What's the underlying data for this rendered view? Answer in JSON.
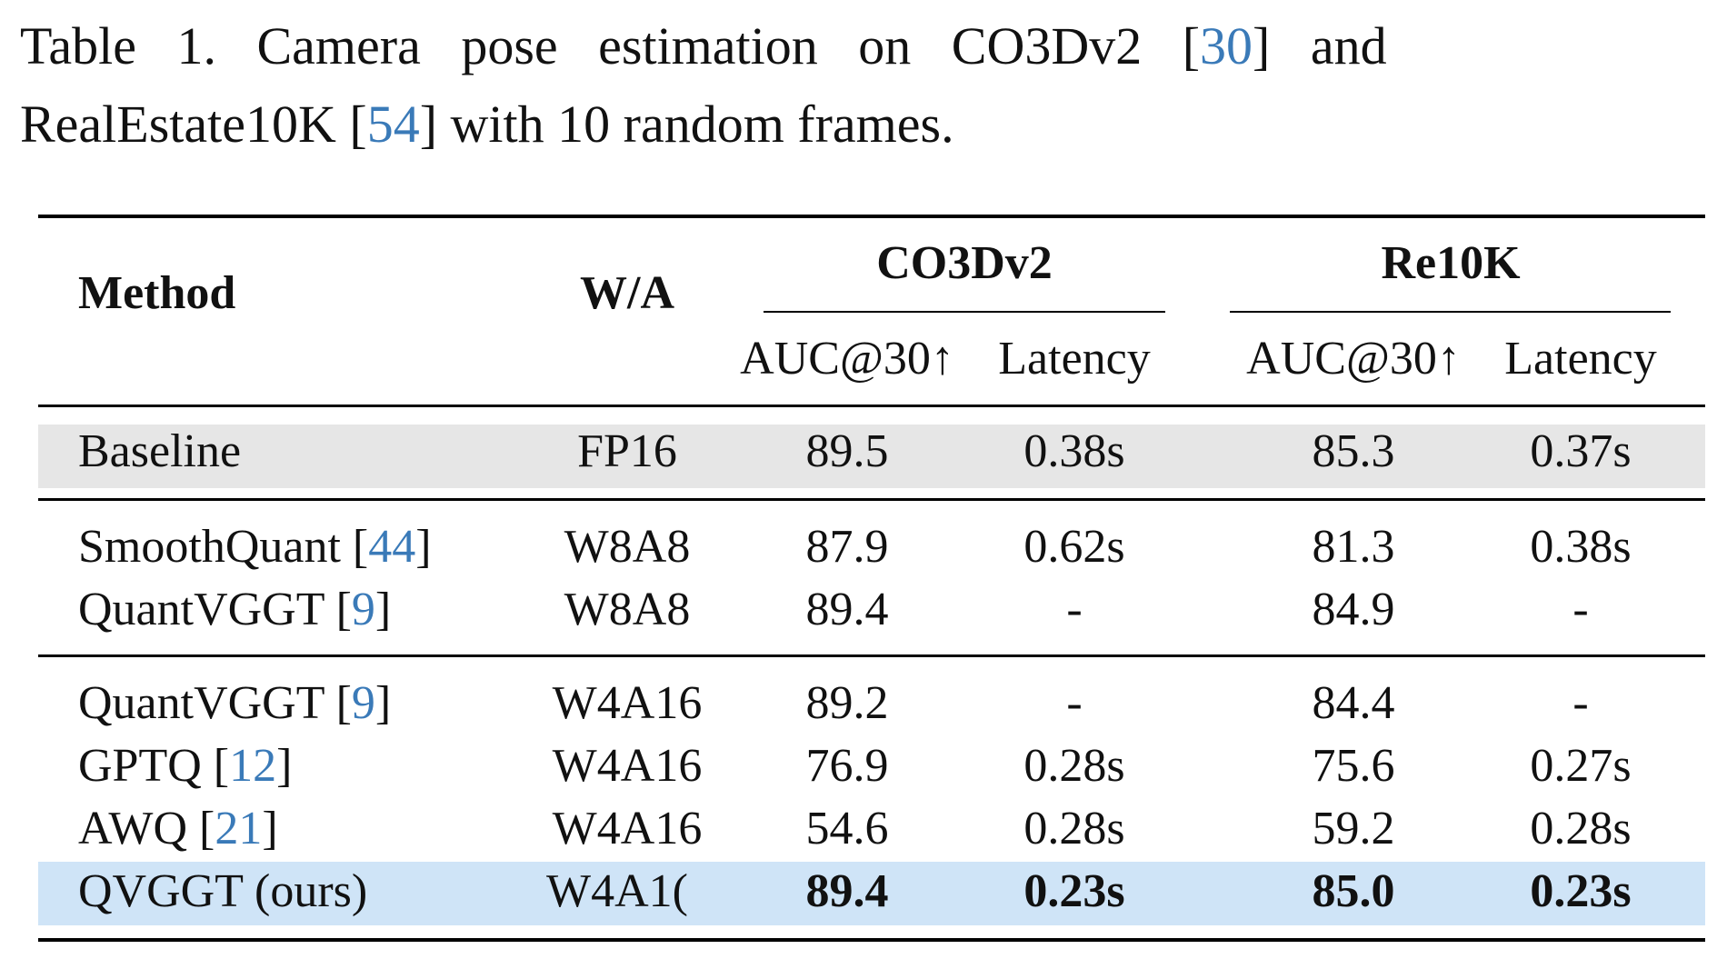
{
  "caption": {
    "label": "Table 1.",
    "line1_text": "Camera pose estimation on CO3Dv2 [",
    "ref_co3d": "30",
    "line1_tail": "] and",
    "line2_text": "RealEstate10K [",
    "ref_re10k": "54",
    "line2_tail": "] with 10 random frames."
  },
  "table": {
    "headers": {
      "method": "Method",
      "wa": "W/A",
      "group1": "CO3Dv2",
      "group2": "Re10K",
      "auc1": "AUC@30↑",
      "lat1": "Latency",
      "auc2": "AUC@30↑",
      "lat2": "Latency"
    },
    "rows": [
      {
        "method": "Baseline",
        "ref": "",
        "wa": "FP16",
        "auc1": "89.5",
        "lat1": "0.38s",
        "auc2": "85.3",
        "lat2": "0.37s",
        "highlight": "gray"
      },
      {
        "method": "SmoothQuant [",
        "ref": "44",
        "tail": "]",
        "wa": "W8A8",
        "auc1": "87.9",
        "lat1": "0.62s",
        "auc2": "81.3",
        "lat2": "0.38s"
      },
      {
        "method": "QuantVGGT [",
        "ref": "9",
        "tail": "]",
        "wa": "W8A8",
        "auc1": "89.4",
        "lat1": "-",
        "auc2": "84.9",
        "lat2": "-"
      },
      {
        "method": "QuantVGGT [",
        "ref": "9",
        "tail": "]",
        "wa": "W4A16",
        "auc1": "89.2",
        "lat1": "-",
        "auc2": "84.4",
        "lat2": "-"
      },
      {
        "method": "GPTQ [",
        "ref": "12",
        "tail": "]",
        "wa": "W4A16",
        "auc1": "76.9",
        "lat1": "0.28s",
        "auc2": "75.6",
        "lat2": "0.27s"
      },
      {
        "method": "AWQ [",
        "ref": "21",
        "tail": "]",
        "wa": "W4A16",
        "auc1": "54.6",
        "lat1": "0.28s",
        "auc2": "59.2",
        "lat2": "0.28s"
      },
      {
        "method": "QVGGT (ours)",
        "ref": "",
        "wa": "W4A1(",
        "auc1": "89.4",
        "lat1": "0.23s",
        "auc2": "85.0",
        "lat2": "0.23s",
        "highlight": "blue",
        "bold_values": true
      }
    ]
  },
  "colors": {
    "baseline_row": "#e6e6e6",
    "ours_row": "#cfe4f7",
    "reference_link": "#3a7ab8"
  }
}
